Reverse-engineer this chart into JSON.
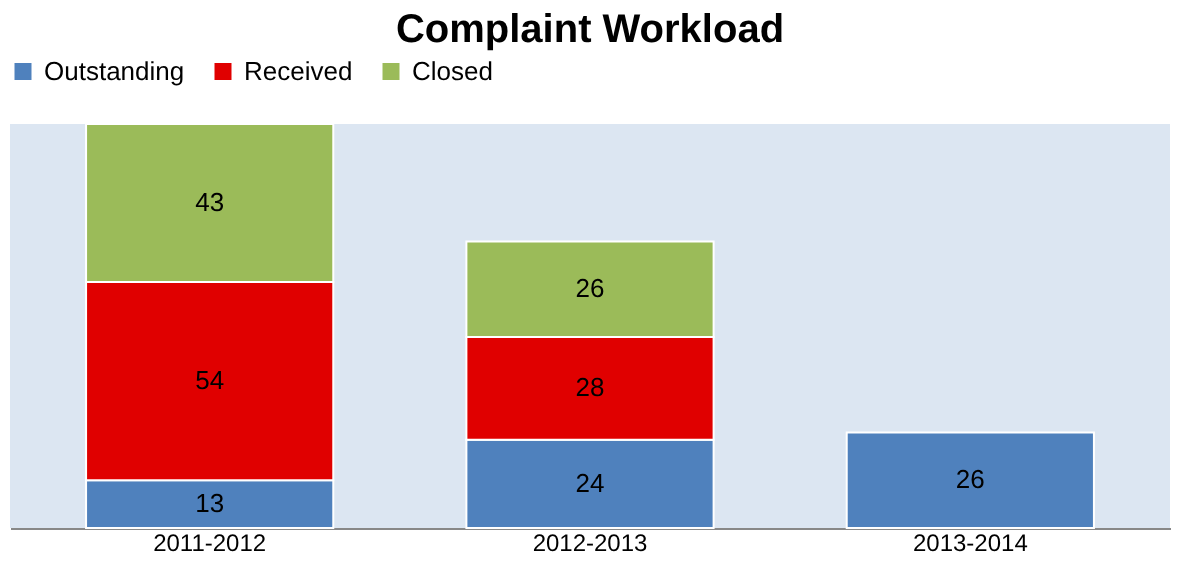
{
  "chart_data": {
    "type": "bar",
    "title": "Complaint Workload",
    "stacked": true,
    "data_labels": true,
    "legend": "top",
    "grid": false,
    "tick_labels": "x",
    "categories": [
      "2011-2012",
      "2012-2013",
      "2013-2014"
    ],
    "series": [
      {
        "name": "Outstanding",
        "color": "#4f81bd",
        "values": [
          13,
          24,
          26
        ]
      },
      {
        "name": "Received",
        "color": "#e00000",
        "values": [
          54,
          28,
          null
        ]
      },
      {
        "name": "Closed",
        "color": "#9bbb59",
        "values": [
          43,
          26,
          null
        ]
      }
    ]
  }
}
